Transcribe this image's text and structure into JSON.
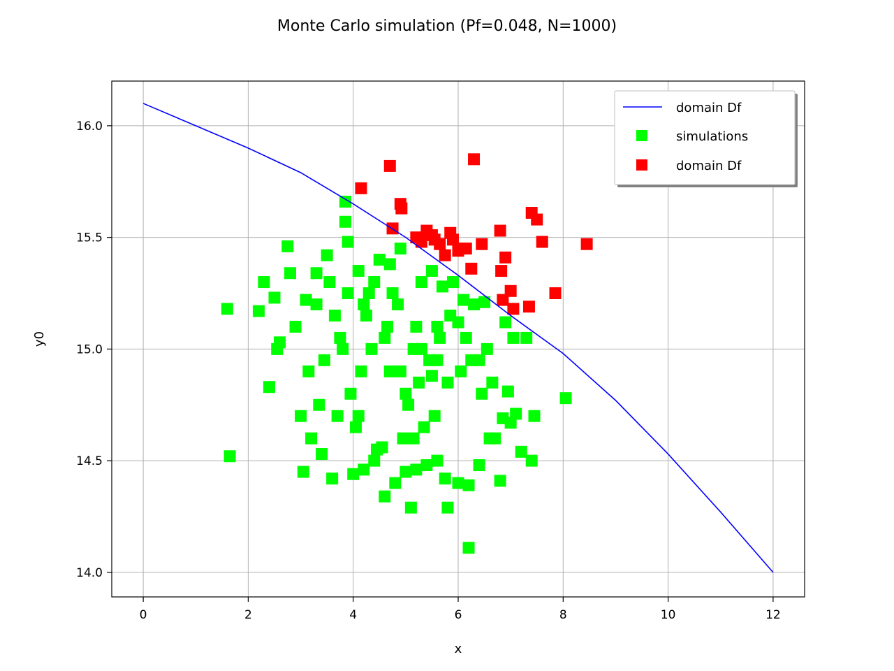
{
  "chart_data": {
    "type": "scatter",
    "title": "Monte Carlo simulation (Pf=0.048, N=1000)",
    "xlabel": "x",
    "ylabel": "y0",
    "xlim": [
      -0.6,
      12.6
    ],
    "ylim": [
      13.89,
      16.2
    ],
    "xticks": [
      0,
      2,
      4,
      6,
      8,
      10,
      12
    ],
    "yticks": [
      14.0,
      14.5,
      15.0,
      15.5,
      16.0
    ],
    "xtick_labels": [
      "0",
      "2",
      "4",
      "6",
      "8",
      "10",
      "12"
    ],
    "ytick_labels": [
      "14.0",
      "14.5",
      "15.0",
      "15.5",
      "16.0"
    ],
    "grid": true,
    "legend_position": "top-right",
    "legend": [
      "domain Df",
      "simulations",
      "domain Df"
    ],
    "colors": {
      "curve": "#0000ff",
      "simulations": "#00ff00",
      "failures": "#ff0000"
    },
    "series": [
      {
        "name": "domain Df",
        "kind": "line",
        "x": [
          0,
          1,
          2,
          3,
          4,
          5,
          6,
          7,
          8,
          9,
          10,
          11,
          12
        ],
        "y": [
          16.1,
          16.0,
          15.9,
          15.79,
          15.65,
          15.5,
          15.33,
          15.15,
          14.98,
          14.77,
          14.53,
          14.27,
          14.0
        ]
      },
      {
        "name": "simulations",
        "kind": "scatter",
        "x": [
          1.6,
          1.65,
          2.2,
          2.3,
          2.5,
          2.6,
          2.75,
          2.8,
          3.05,
          3.3,
          3.5,
          3.85,
          3.85,
          3.9,
          3.0,
          2.4,
          2.55,
          3.2,
          3.1,
          3.4,
          3.6,
          4.0,
          4.2,
          4.4,
          4.6,
          4.8,
          5.0,
          5.2,
          5.4,
          5.6,
          5.8,
          6.0,
          6.2,
          6.4,
          6.6,
          6.8,
          7.0,
          7.2,
          7.4,
          7.45,
          8.05,
          6.2,
          6.85,
          5.1,
          5.75,
          4.55,
          7.1,
          6.7,
          6.95,
          7.3,
          2.9,
          3.15,
          3.3,
          3.55,
          4.5,
          4.1,
          4.3,
          4.7,
          4.9,
          5.3,
          5.5,
          5.7,
          5.9,
          6.1,
          6.3,
          6.5,
          6.9,
          7.05,
          3.7,
          3.95,
          4.15,
          4.35,
          4.65,
          4.85,
          5.05,
          5.25,
          5.45,
          5.65,
          5.85,
          6.05,
          6.25,
          6.45,
          6.65,
          3.45,
          3.75,
          4.25,
          4.75,
          5.15,
          5.35,
          5.55,
          3.35,
          3.65,
          4.05,
          4.45,
          4.95,
          5.15,
          5.6,
          6.15,
          6.55,
          5.2,
          4.9,
          4.6,
          5.8,
          4.2,
          3.8,
          6.4,
          5.0,
          4.4,
          5.6,
          4.7,
          5.3,
          3.9,
          6.0,
          4.1,
          5.5
        ],
        "y": [
          15.18,
          14.52,
          15.17,
          15.3,
          15.23,
          15.03,
          15.46,
          15.34,
          14.45,
          15.34,
          15.42,
          15.66,
          15.57,
          15.48,
          14.7,
          14.83,
          15.0,
          14.6,
          15.22,
          14.53,
          14.42,
          14.44,
          14.46,
          14.5,
          14.34,
          14.4,
          14.45,
          14.46,
          14.48,
          14.5,
          14.29,
          14.4,
          14.39,
          14.48,
          14.6,
          14.41,
          14.67,
          14.54,
          14.5,
          14.7,
          14.78,
          14.11,
          14.69,
          14.29,
          14.42,
          14.56,
          14.71,
          14.6,
          14.81,
          15.05,
          15.1,
          14.9,
          15.2,
          15.3,
          15.4,
          15.35,
          15.25,
          15.38,
          15.45,
          15.3,
          15.35,
          15.28,
          15.3,
          15.22,
          15.2,
          15.21,
          15.12,
          15.05,
          14.7,
          14.8,
          14.9,
          15.0,
          15.1,
          15.2,
          14.75,
          14.85,
          14.95,
          15.05,
          15.15,
          14.9,
          14.95,
          14.8,
          14.85,
          14.95,
          15.05,
          15.15,
          15.25,
          14.6,
          14.65,
          14.7,
          14.75,
          15.15,
          14.65,
          14.55,
          14.6,
          15.0,
          14.95,
          15.05,
          15.0,
          15.1,
          14.9,
          15.05,
          14.85,
          15.2,
          15.0,
          14.95,
          14.8,
          15.3,
          15.1,
          14.9,
          15.0,
          15.25,
          15.12,
          14.7,
          14.88
        ]
      },
      {
        "name": "domain Df",
        "kind": "scatter",
        "x": [
          4.15,
          4.7,
          4.75,
          4.9,
          4.92,
          5.2,
          5.3,
          5.4,
          5.5,
          5.55,
          5.65,
          5.75,
          5.85,
          5.9,
          6.0,
          6.05,
          6.15,
          6.25,
          6.3,
          6.45,
          6.8,
          6.82,
          6.85,
          6.9,
          7.0,
          7.05,
          7.35,
          7.4,
          7.5,
          7.6,
          7.85,
          8.45
        ],
        "y": [
          15.72,
          15.82,
          15.54,
          15.65,
          15.63,
          15.5,
          15.48,
          15.53,
          15.51,
          15.49,
          15.47,
          15.42,
          15.52,
          15.49,
          15.44,
          15.45,
          15.45,
          15.36,
          15.85,
          15.47,
          15.53,
          15.35,
          15.22,
          15.41,
          15.26,
          15.18,
          15.19,
          15.61,
          15.58,
          15.48,
          15.25,
          15.47
        ]
      }
    ]
  }
}
